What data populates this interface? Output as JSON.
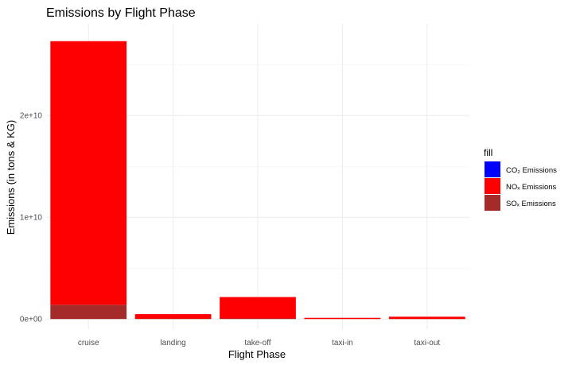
{
  "chart_data": {
    "type": "bar",
    "stacked": true,
    "title": "Emissions by Flight Phase",
    "xlabel": "Flight Phase",
    "ylabel": "Emissions (in tons & KG)",
    "categories": [
      "cruise",
      "landing",
      "take-off",
      "taxi-in",
      "taxi-out"
    ],
    "ylim": [
      -1000000000,
      29000000000
    ],
    "y_ticks": [
      0,
      10000000000,
      20000000000
    ],
    "y_tick_labels": [
      "0e+00",
      "1e+10",
      "2e+10"
    ],
    "grid": true,
    "legend": {
      "title": "fill",
      "placement": "right"
    },
    "series": [
      {
        "name": "CO₂ Emissions",
        "color": "#0000ff",
        "values": [
          0,
          0,
          0,
          0,
          0
        ]
      },
      {
        "name": "NOₓ Emissions",
        "color": "#ff0000",
        "values": [
          25900000000,
          450000000,
          2100000000,
          40000000,
          220000000
        ]
      },
      {
        "name": "SOₓ Emissions",
        "color": "#a52a2a",
        "values": [
          1400000000,
          30000000,
          60000000,
          0,
          10000000
        ]
      }
    ]
  }
}
